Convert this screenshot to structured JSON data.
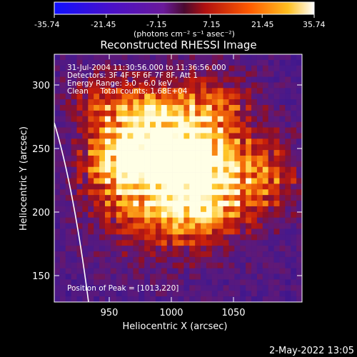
{
  "colorbar": {
    "ticks": [
      "-35.74",
      "-21.45",
      "-7.15",
      "7.15",
      "21.45",
      "35.74"
    ],
    "unit_label": "(photons cm⁻² s⁻¹ asec⁻²)",
    "min": -35.74,
    "max": 35.74
  },
  "footer": {
    "date_stamp": "2-May-2022 13:05"
  },
  "chart_data": {
    "type": "heatmap",
    "title": "Reconstructed RHESSI Image",
    "xlabel": "Heliocentric X (arcsec)",
    "ylabel": "Heliocentric Y (arcsec)",
    "xlim": [
      908,
      1098
    ],
    "ylim": [
      128,
      325
    ],
    "xticks": [
      "950",
      "1000",
      "1050"
    ],
    "yticks": [
      "150",
      "200",
      "250",
      "300"
    ],
    "annotations": [
      "31-Jul-2004 11:30:56.000 to 11:36:56.000",
      "Detectors: 3F 4F 5F 6F 7F 8F, Att 1",
      "Energy Range: 3.0 - 6.0 keV",
      "Clean     Total counts: 1.68E+04"
    ],
    "peak_label": "Position of Peak = [1013,220]",
    "peak": {
      "x": 1013,
      "y": 220
    },
    "limb_color": "#ffffff",
    "colors": {
      "background": "#000000",
      "text": "#ffffff"
    }
  }
}
